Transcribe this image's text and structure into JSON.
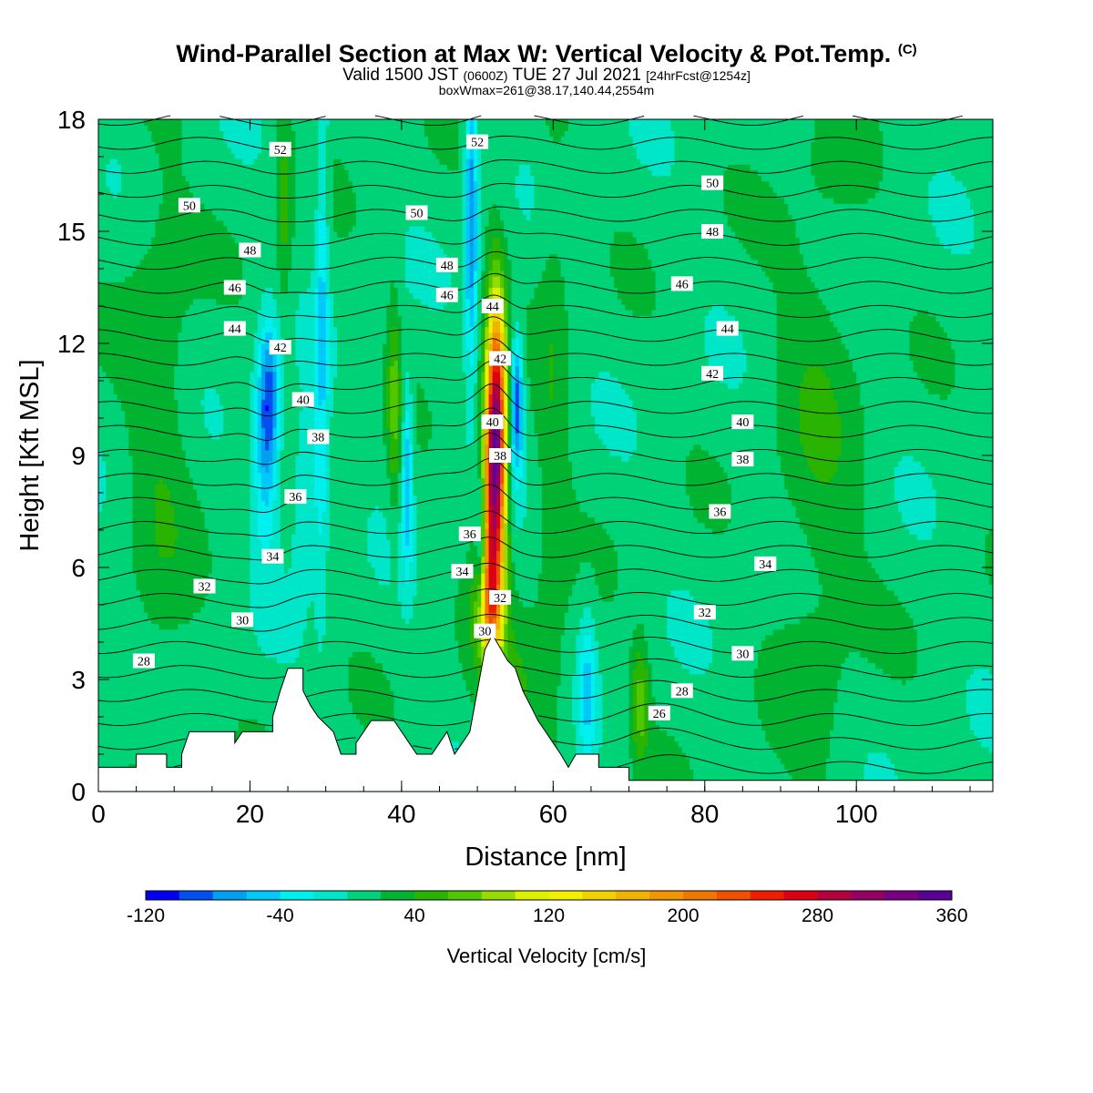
{
  "title": {
    "main": "Wind-Parallel Section at Max W: Vertical Velocity & Pot.Temp.",
    "copyright": "(C)",
    "valid_prefix": "Valid 1500 JST",
    "valid_z": "(0600Z)",
    "valid_date": "TUE 27 Jul 2021",
    "forecast": "[24hrFcst@1254z]",
    "boxmax": "boxWmax=261@38.17,140.44,2554m"
  },
  "chart_data": {
    "type": "heatmap",
    "xlabel": "Distance [nm]",
    "ylabel": "Height [Kft MSL]",
    "xlim": [
      0,
      118
    ],
    "ylim": [
      0,
      18
    ],
    "x_ticks": [
      0,
      20,
      40,
      60,
      80,
      100
    ],
    "y_ticks": [
      0,
      3,
      6,
      9,
      12,
      15,
      18
    ],
    "colorbar": {
      "label": "Vertical Velocity [cm/s]",
      "min": -120,
      "step": 20,
      "tick_values": [
        -120,
        -40,
        40,
        120,
        200,
        280,
        360
      ],
      "colors": [
        "#0000f0",
        "#0050f0",
        "#00a0f0",
        "#00c8f8",
        "#00f0f0",
        "#00e6c8",
        "#00d278",
        "#00b432",
        "#28b400",
        "#50c800",
        "#96dc00",
        "#dcf000",
        "#f0f000",
        "#f0d200",
        "#f0b400",
        "#f09600",
        "#f07800",
        "#f05000",
        "#f01e00",
        "#dc0014",
        "#b4003c",
        "#960064",
        "#780082",
        "#5a0096"
      ]
    },
    "terrain_kft": [
      [
        0,
        0.65
      ],
      [
        5,
        0.65
      ],
      [
        5,
        1.0
      ],
      [
        9,
        1.0
      ],
      [
        9,
        0.65
      ],
      [
        11,
        0.65
      ],
      [
        11,
        1.0
      ],
      [
        12,
        1.6
      ],
      [
        18,
        1.6
      ],
      [
        18,
        1.3
      ],
      [
        19,
        1.6
      ],
      [
        23,
        1.6
      ],
      [
        23,
        2.0
      ],
      [
        24,
        2.7
      ],
      [
        25,
        3.3
      ],
      [
        27,
        3.3
      ],
      [
        27,
        2.7
      ],
      [
        28,
        2.3
      ],
      [
        29,
        2.0
      ],
      [
        31,
        1.6
      ],
      [
        32,
        1.0
      ],
      [
        34,
        1.0
      ],
      [
        34,
        1.3
      ],
      [
        35,
        1.6
      ],
      [
        36,
        1.9
      ],
      [
        39,
        1.9
      ],
      [
        40,
        1.6
      ],
      [
        41,
        1.3
      ],
      [
        42,
        1.0
      ],
      [
        44,
        1.0
      ],
      [
        45,
        1.3
      ],
      [
        46,
        1.6
      ],
      [
        47,
        1.0
      ],
      [
        48,
        1.3
      ],
      [
        49,
        1.6
      ],
      [
        50,
        2.7
      ],
      [
        51,
        3.8
      ],
      [
        52,
        4.2
      ],
      [
        54,
        3.5
      ],
      [
        55,
        3.3
      ],
      [
        56,
        2.7
      ],
      [
        57,
        2.3
      ],
      [
        58,
        1.9
      ],
      [
        59,
        1.6
      ],
      [
        60,
        1.3
      ],
      [
        61,
        1.0
      ],
      [
        62,
        0.65
      ],
      [
        63,
        1.0
      ],
      [
        66,
        1.0
      ],
      [
        66,
        0.65
      ],
      [
        70,
        0.65
      ],
      [
        70,
        0.3
      ],
      [
        118,
        0.3
      ]
    ],
    "w_features": [
      {
        "x": 52.5,
        "z": 10.0,
        "sx": 0.9,
        "sz": 2.3,
        "w": 261
      },
      {
        "x": 52.0,
        "z": 7.2,
        "sx": 1.1,
        "sz": 2.2,
        "w": 180
      },
      {
        "x": 51.5,
        "z": 5.0,
        "sx": 1.2,
        "sz": 1.0,
        "w": 110
      },
      {
        "x": 55.2,
        "z": 10.4,
        "sx": 0.6,
        "sz": 1.3,
        "w": -110
      },
      {
        "x": 50.5,
        "z": 6.5,
        "sx": 0.5,
        "sz": 1.5,
        "w": -80
      },
      {
        "x": 49.2,
        "z": 15.5,
        "sx": 0.6,
        "sz": 2.8,
        "w": -90
      },
      {
        "x": 22.5,
        "z": 10.6,
        "sx": 1.0,
        "sz": 1.4,
        "w": -90
      },
      {
        "x": 22.0,
        "z": 8.5,
        "sx": 1.2,
        "sz": 1.8,
        "w": -50
      },
      {
        "x": 29.5,
        "z": 13.0,
        "sx": 0.6,
        "sz": 5.0,
        "w": -50
      },
      {
        "x": 27.5,
        "z": 8.0,
        "sx": 1.5,
        "sz": 1.5,
        "w": -40
      },
      {
        "x": 40.8,
        "z": 8.5,
        "sx": 0.5,
        "sz": 1.8,
        "w": -70
      },
      {
        "x": 39.0,
        "z": 10.5,
        "sx": 0.6,
        "sz": 2.0,
        "w": 50
      },
      {
        "x": 24.5,
        "z": 15.8,
        "sx": 0.8,
        "sz": 2.0,
        "w": 40
      },
      {
        "x": 64.5,
        "z": 2.8,
        "sx": 0.8,
        "sz": 1.5,
        "w": -50
      },
      {
        "x": 71.5,
        "z": 2.4,
        "sx": 0.8,
        "sz": 1.1,
        "w": 60
      },
      {
        "x": 55.0,
        "z": 2.8,
        "sx": 4.0,
        "sz": 1.4,
        "w": 30
      },
      {
        "x": 60.0,
        "z": 10.0,
        "sx": 1.5,
        "sz": 6.0,
        "w": 25
      },
      {
        "x": 95.0,
        "z": 9.0,
        "sx": 4.0,
        "sz": 6.0,
        "w": 25
      },
      {
        "x": 8.0,
        "z": 10.0,
        "sx": 3.0,
        "sz": 6.0,
        "w": 25
      }
    ],
    "theta_range": [
      24,
      52
    ],
    "theta_levels": [
      24,
      25,
      26,
      27,
      28,
      29,
      30,
      31,
      32,
      33,
      34,
      35,
      36,
      37,
      38,
      39,
      40,
      41,
      42,
      43,
      44,
      45,
      46,
      47,
      48,
      49,
      50,
      51,
      52
    ],
    "theta_labels": [
      {
        "text": "52",
        "x": 24,
        "z": 17.2
      },
      {
        "text": "50",
        "x": 12,
        "z": 15.7
      },
      {
        "text": "48",
        "x": 20,
        "z": 14.5
      },
      {
        "text": "46",
        "x": 18,
        "z": 13.5
      },
      {
        "text": "44",
        "x": 18,
        "z": 12.4
      },
      {
        "text": "42",
        "x": 24,
        "z": 11.9
      },
      {
        "text": "40",
        "x": 27,
        "z": 10.5
      },
      {
        "text": "38",
        "x": 29,
        "z": 9.5
      },
      {
        "text": "36",
        "x": 26,
        "z": 7.9
      },
      {
        "text": "34",
        "x": 23,
        "z": 6.3
      },
      {
        "text": "32",
        "x": 14,
        "z": 5.5
      },
      {
        "text": "30",
        "x": 19,
        "z": 4.6
      },
      {
        "text": "28",
        "x": 6,
        "z": 3.5
      },
      {
        "text": "52",
        "x": 50,
        "z": 17.4
      },
      {
        "text": "50",
        "x": 42,
        "z": 15.5
      },
      {
        "text": "48",
        "x": 46,
        "z": 14.1
      },
      {
        "text": "46",
        "x": 46,
        "z": 13.3
      },
      {
        "text": "44",
        "x": 52,
        "z": 13.0
      },
      {
        "text": "42",
        "x": 53,
        "z": 11.6
      },
      {
        "text": "40",
        "x": 52,
        "z": 9.9
      },
      {
        "text": "38",
        "x": 53,
        "z": 9.0
      },
      {
        "text": "36",
        "x": 49,
        "z": 6.9
      },
      {
        "text": "34",
        "x": 48,
        "z": 5.9
      },
      {
        "text": "32",
        "x": 53,
        "z": 5.2
      },
      {
        "text": "30",
        "x": 51,
        "z": 4.3
      },
      {
        "text": "50",
        "x": 81,
        "z": 16.3
      },
      {
        "text": "48",
        "x": 81,
        "z": 15.0
      },
      {
        "text": "46",
        "x": 77,
        "z": 13.6
      },
      {
        "text": "44",
        "x": 83,
        "z": 12.4
      },
      {
        "text": "42",
        "x": 81,
        "z": 11.2
      },
      {
        "text": "40",
        "x": 85,
        "z": 9.9
      },
      {
        "text": "38",
        "x": 85,
        "z": 8.9
      },
      {
        "text": "36",
        "x": 82,
        "z": 7.5
      },
      {
        "text": "34",
        "x": 88,
        "z": 6.1
      },
      {
        "text": "32",
        "x": 80,
        "z": 4.8
      },
      {
        "text": "30",
        "x": 85,
        "z": 3.7
      },
      {
        "text": "28",
        "x": 77,
        "z": 2.7
      },
      {
        "text": "26",
        "x": 74,
        "z": 2.1
      }
    ]
  }
}
